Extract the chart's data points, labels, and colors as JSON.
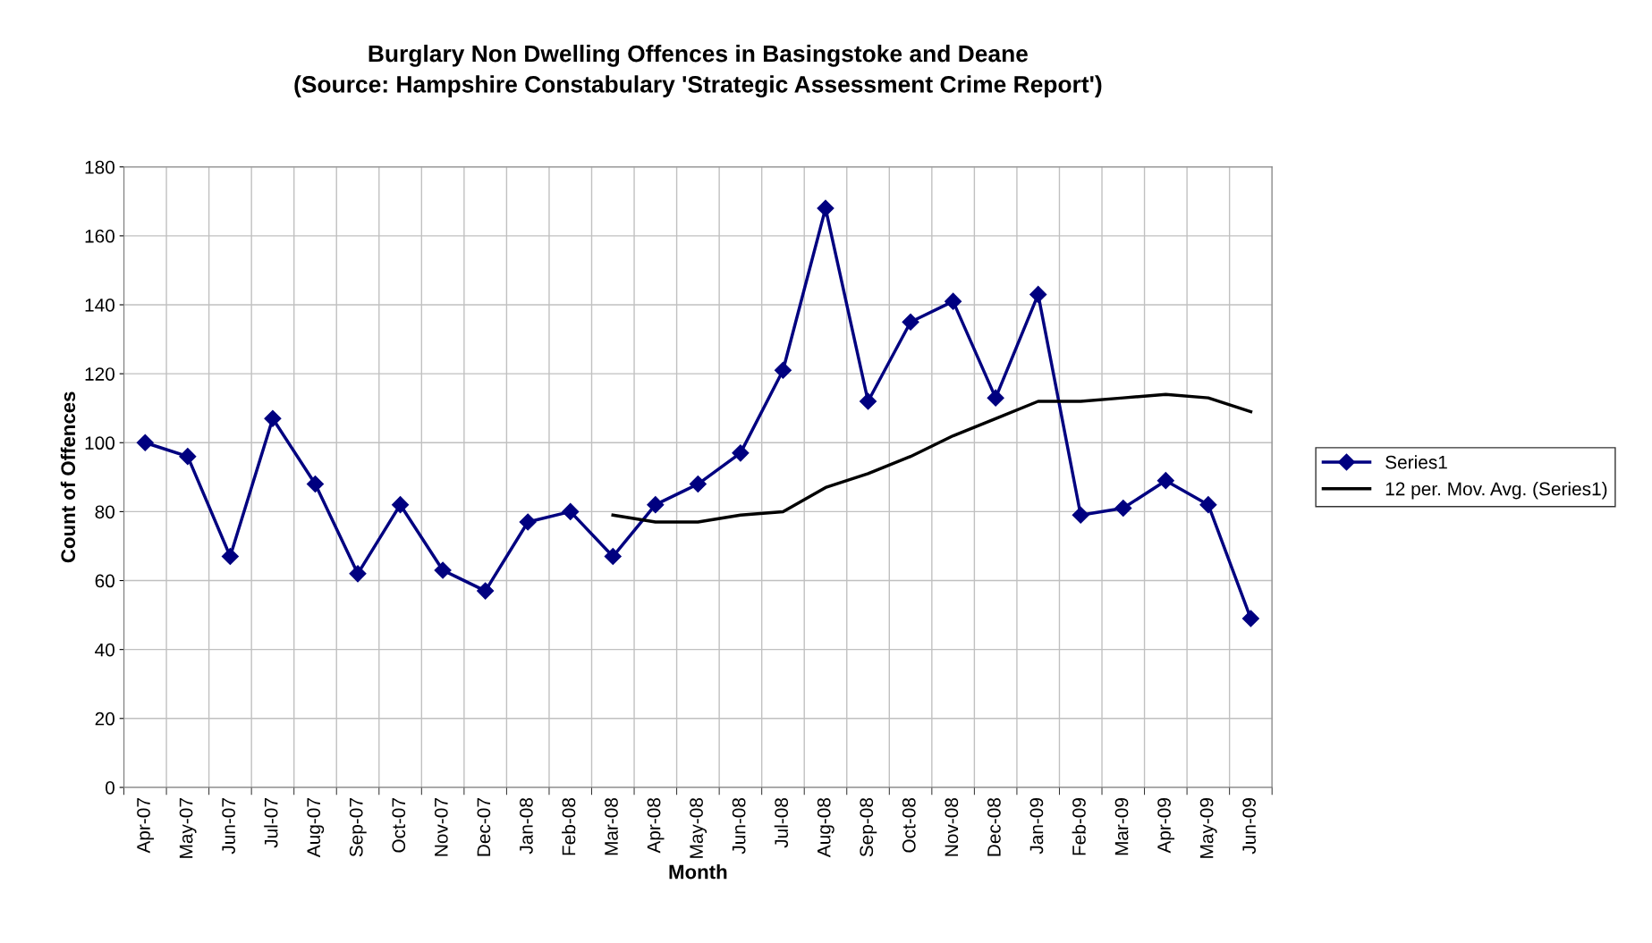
{
  "chart_data": {
    "type": "line",
    "title": "Burglary Non Dwelling Offences in Basingstoke and Deane",
    "subtitle": "(Source: Hampshire Constabulary 'Strategic Assessment Crime Report')",
    "xlabel": "Month",
    "ylabel": "Count of Offences",
    "categories": [
      "Apr-07",
      "May-07",
      "Jun-07",
      "Jul-07",
      "Aug-07",
      "Sep-07",
      "Oct-07",
      "Nov-07",
      "Dec-07",
      "Jan-08",
      "Feb-08",
      "Mar-08",
      "Apr-08",
      "May-08",
      "Jun-08",
      "Jul-08",
      "Aug-08",
      "Sep-08",
      "Oct-08",
      "Nov-08",
      "Dec-08",
      "Jan-09",
      "Feb-09",
      "Mar-09",
      "Apr-09",
      "May-09",
      "Jun-09"
    ],
    "series": [
      {
        "name": "Series1",
        "color": "#000080",
        "marker": "diamond",
        "values": [
          100,
          96,
          67,
          107,
          88,
          62,
          82,
          63,
          57,
          77,
          80,
          67,
          82,
          88,
          97,
          121,
          168,
          112,
          135,
          141,
          113,
          143,
          79,
          81,
          89,
          82,
          49
        ]
      },
      {
        "name": "12 per. Mov. Avg. (Series1)",
        "color": "#000000",
        "marker": "none",
        "values": [
          null,
          null,
          null,
          null,
          null,
          null,
          null,
          null,
          null,
          null,
          null,
          79,
          77,
          77,
          79,
          80,
          87,
          91,
          96,
          102,
          107,
          112,
          112,
          113,
          114,
          113,
          109
        ]
      }
    ],
    "ylim": [
      0,
      180
    ],
    "yticks": [
      0,
      20,
      40,
      60,
      80,
      100,
      120,
      140,
      160,
      180
    ],
    "grid": true,
    "legend": "right",
    "line_style": "solid"
  }
}
